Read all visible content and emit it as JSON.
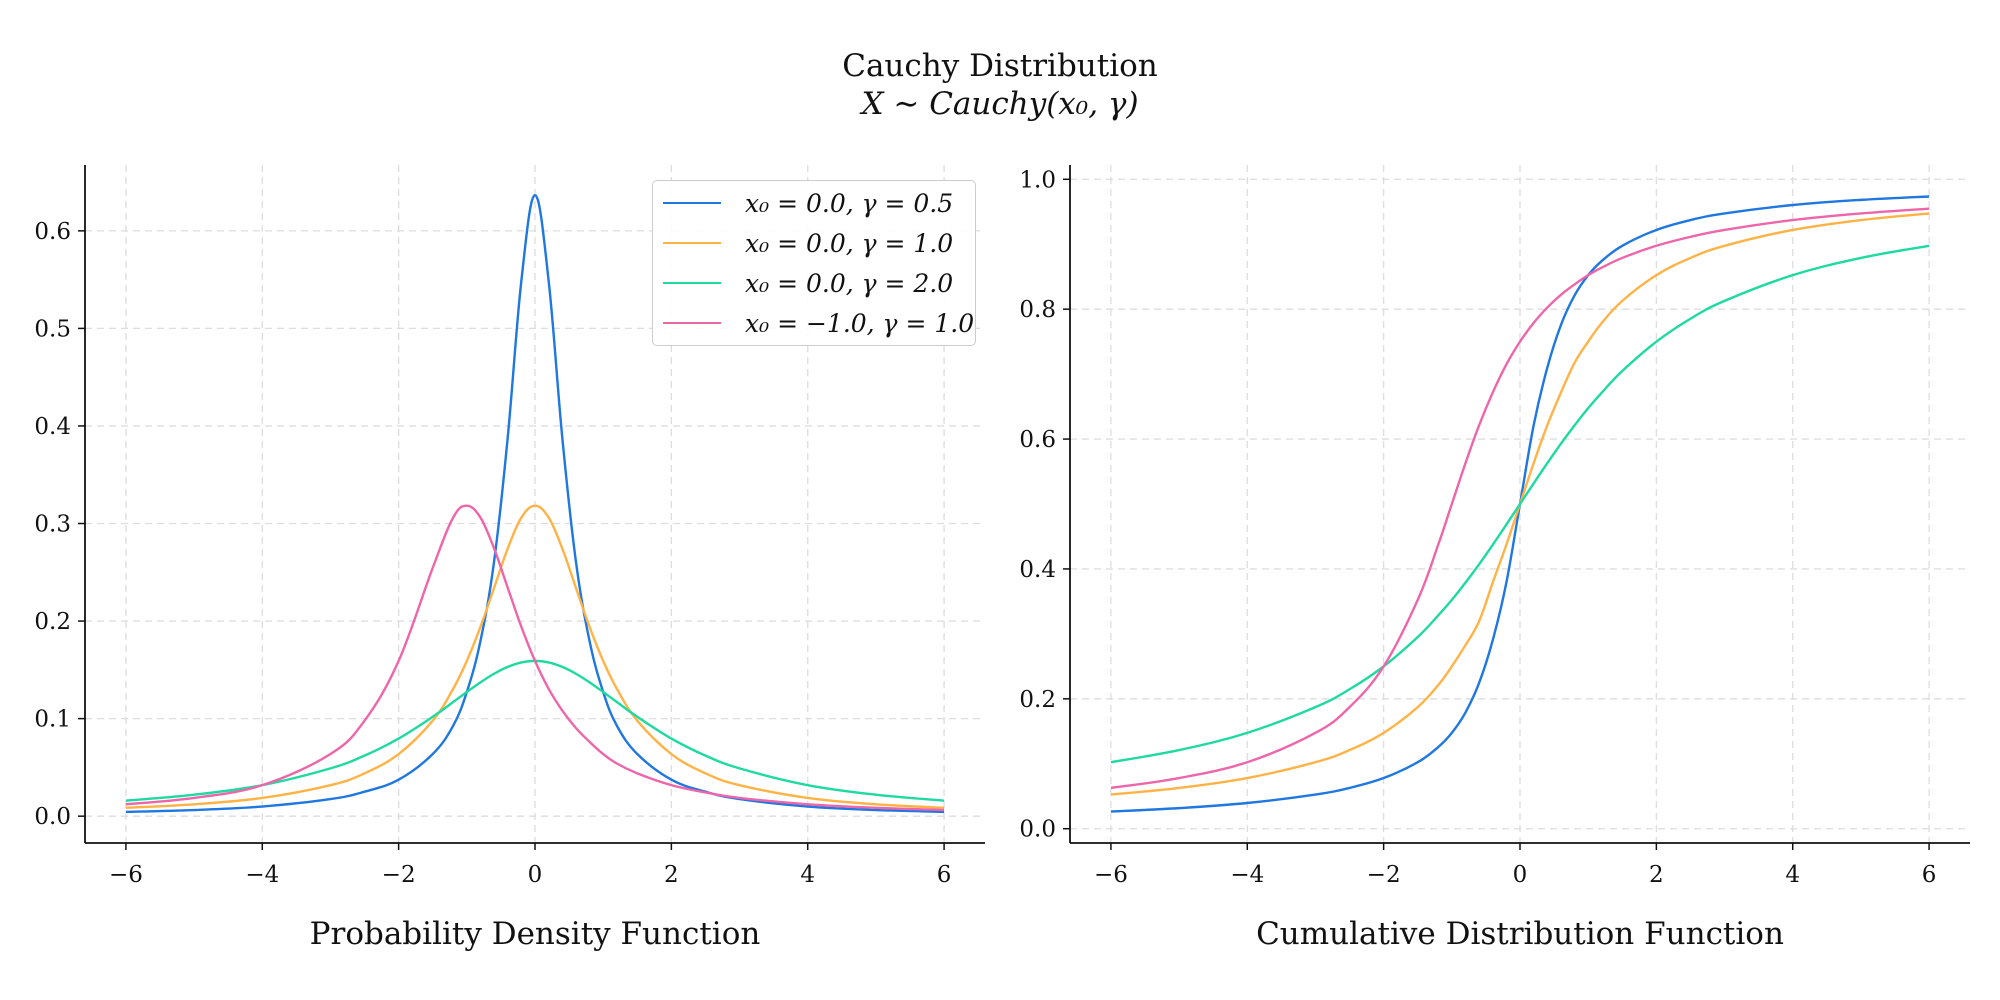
{
  "figure": {
    "title": "Cauchy Distribution",
    "subtitle": "X ∼ Cauchy(x₀, γ)"
  },
  "chart_data": [
    {
      "type": "line",
      "name": "pdf",
      "xlabel": "Probability Density Function",
      "ylabel": "",
      "xlim": [
        -6.6,
        6.6
      ],
      "ylim": [
        -0.0275,
        0.6675
      ],
      "xticks": [
        -6,
        -4,
        -2,
        0,
        2,
        4,
        6
      ],
      "xtick_labels": [
        "−6",
        "−4",
        "−2",
        "0",
        "2",
        "4",
        "6"
      ],
      "yticks": [
        0.0,
        0.1,
        0.2,
        0.3,
        0.4,
        0.5,
        0.6
      ],
      "ytick_labels": [
        "0.0",
        "0.1",
        "0.2",
        "0.3",
        "0.4",
        "0.5",
        "0.6"
      ],
      "grid": true,
      "legend_position": "top-right",
      "x": [
        -6,
        -5,
        -4,
        -3,
        -2.5,
        -2,
        -1.5,
        -1.2,
        -1,
        -0.8,
        -0.6,
        -0.4,
        -0.2,
        0,
        0.2,
        0.4,
        0.6,
        0.8,
        1,
        1.2,
        1.5,
        2,
        2.5,
        3,
        4,
        5,
        6
      ],
      "series": [
        {
          "name": "x₀ = 0.0, γ = 0.5",
          "color": "#1f77e0",
          "values": [
            0.0044,
            0.0063,
            0.0099,
            0.0175,
            0.0251,
            0.0374,
            0.0637,
            0.0928,
            0.1273,
            0.1796,
            0.2611,
            0.3883,
            0.5488,
            0.6366,
            0.5488,
            0.3883,
            0.2611,
            0.1796,
            0.1273,
            0.0928,
            0.0637,
            0.0374,
            0.0251,
            0.0175,
            0.0099,
            0.0063,
            0.0044
          ]
        },
        {
          "name": "x₀ = 0.0, γ = 1.0",
          "color": "#ffb347",
          "values": [
            0.0086,
            0.0122,
            0.0187,
            0.0318,
            0.0439,
            0.0637,
            0.0979,
            0.1306,
            0.1592,
            0.1941,
            0.2341,
            0.2744,
            0.3061,
            0.3183,
            0.3061,
            0.2744,
            0.2341,
            0.1941,
            0.1592,
            0.1306,
            0.0979,
            0.0637,
            0.0439,
            0.0318,
            0.0187,
            0.0122,
            0.0086
          ]
        },
        {
          "name": "x₀ = 0.0, γ = 2.0",
          "color": "#1edaa0",
          "values": [
            0.0159,
            0.022,
            0.0318,
            0.049,
            0.0621,
            0.0796,
            0.1019,
            0.117,
            0.1273,
            0.1372,
            0.146,
            0.153,
            0.1576,
            0.1592,
            0.1576,
            0.153,
            0.146,
            0.1372,
            0.1273,
            0.117,
            0.1019,
            0.0796,
            0.0621,
            0.049,
            0.0318,
            0.022,
            0.0159
          ]
        },
        {
          "name": "x₀ = −1.0, γ = 1.0",
          "color": "#ee66aa",
          "values": [
            0.0122,
            0.0187,
            0.0318,
            0.0637,
            0.0979,
            0.1592,
            0.2546,
            0.3061,
            0.3183,
            0.3061,
            0.2744,
            0.2341,
            0.1941,
            0.1592,
            0.1306,
            0.1083,
            0.0904,
            0.0762,
            0.0637,
            0.054,
            0.0439,
            0.0318,
            0.0243,
            0.0187,
            0.0122,
            0.0086,
            0.0064
          ]
        }
      ]
    },
    {
      "type": "line",
      "name": "cdf",
      "xlabel": "Cumulative Distribution Function",
      "ylabel": "",
      "xlim": [
        -6.6,
        6.6
      ],
      "ylim": [
        -0.022,
        1.022
      ],
      "xticks": [
        -6,
        -4,
        -2,
        0,
        2,
        4,
        6
      ],
      "xtick_labels": [
        "−6",
        "−4",
        "−2",
        "0",
        "2",
        "4",
        "6"
      ],
      "yticks": [
        0.0,
        0.2,
        0.4,
        0.6,
        0.8,
        1.0
      ],
      "ytick_labels": [
        "0.0",
        "0.2",
        "0.4",
        "0.6",
        "0.8",
        "1.0"
      ],
      "grid": true,
      "x": [
        -6,
        -5,
        -4,
        -3,
        -2.5,
        -2,
        -1.5,
        -1.2,
        -1,
        -0.8,
        -0.6,
        -0.4,
        -0.2,
        0,
        0.2,
        0.4,
        0.6,
        0.8,
        1,
        1.2,
        1.5,
        2,
        2.5,
        3,
        4,
        5,
        6
      ],
      "series": [
        {
          "name": "x₀ = 0.0, γ = 0.5",
          "color": "#1f77e0",
          "values": [
            0.0265,
            0.0317,
            0.0396,
            0.0526,
            0.0628,
            0.078,
            0.1024,
            0.1257,
            0.1476,
            0.1789,
            0.2244,
            0.2902,
            0.3789,
            0.5,
            0.6211,
            0.7098,
            0.7756,
            0.8211,
            0.8524,
            0.8743,
            0.8976,
            0.922,
            0.9372,
            0.9474,
            0.9604,
            0.9683,
            0.9735
          ]
        },
        {
          "name": "x₀ = 0.0, γ = 1.0",
          "color": "#ffb347",
          "values": [
            0.0526,
            0.0628,
            0.078,
            0.1024,
            0.1211,
            0.1476,
            0.1872,
            0.2211,
            0.25,
            0.2826,
            0.3195,
            0.3789,
            0.4372,
            0.5,
            0.5628,
            0.6211,
            0.6715,
            0.7174,
            0.75,
            0.7789,
            0.8128,
            0.8524,
            0.8789,
            0.8976,
            0.922,
            0.9372,
            0.9474
          ]
        },
        {
          "name": "x₀ = 0.0, γ = 2.0",
          "color": "#1edaa0",
          "values": [
            0.1024,
            0.1211,
            0.1476,
            0.1872,
            0.2147,
            0.25,
            0.2952,
            0.3284,
            0.3524,
            0.3789,
            0.4072,
            0.4372,
            0.4683,
            0.5,
            0.5317,
            0.5628,
            0.5928,
            0.6211,
            0.6476,
            0.6716,
            0.7048,
            0.75,
            0.7853,
            0.8128,
            0.8524,
            0.8789,
            0.8976
          ]
        },
        {
          "name": "x₀ = −1.0, γ = 1.0",
          "color": "#ee66aa",
          "values": [
            0.0628,
            0.078,
            0.1024,
            0.1476,
            0.1872,
            0.25,
            0.3524,
            0.4372,
            0.5,
            0.5628,
            0.6211,
            0.6716,
            0.7149,
            0.75,
            0.7789,
            0.8025,
            0.8221,
            0.8381,
            0.8524,
            0.864,
            0.8789,
            0.8976,
            0.9113,
            0.922,
            0.9372,
            0.9474,
            0.9548
          ]
        }
      ]
    }
  ]
}
